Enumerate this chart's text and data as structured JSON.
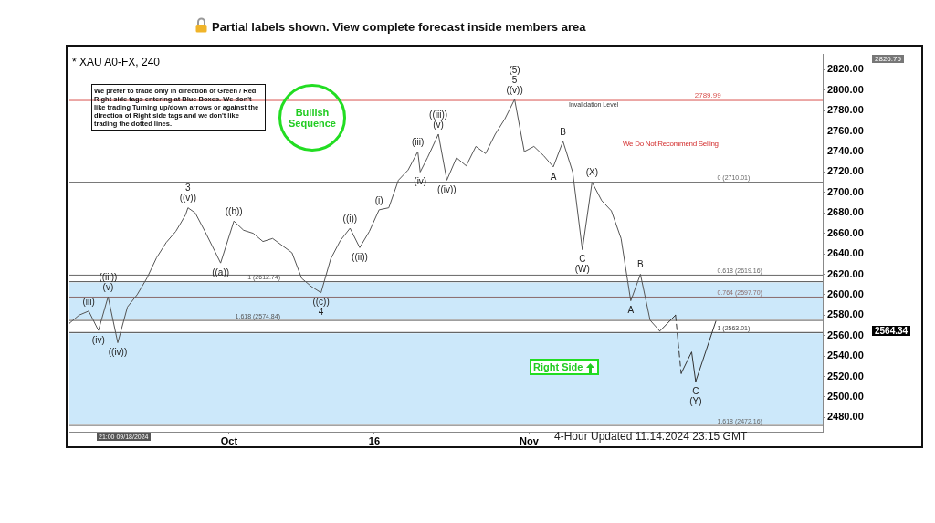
{
  "chart_data": {
    "type": "line",
    "title": "* XAU A0-FX, 240",
    "xlim": [
      "2024-09-14T12:00",
      "2024-12-01T08:00"
    ],
    "xticks": [
      {
        "value": "2024-10-01",
        "label": "Oct"
      },
      {
        "value": "2024-10-16",
        "label": "16"
      },
      {
        "value": "2024-11-01",
        "label": "Nov"
      }
    ],
    "ylim": [
      2466,
      2835
    ],
    "yticks": [
      {
        "value": 2480,
        "label": "2480.00"
      },
      {
        "value": 2500,
        "label": "2500.00"
      },
      {
        "value": 2520,
        "label": "2520.00"
      },
      {
        "value": 2540,
        "label": "2540.00"
      },
      {
        "value": 2560,
        "label": "2560.00"
      },
      {
        "value": 2580,
        "label": "2580.00"
      },
      {
        "value": 2600,
        "label": "2600.00"
      },
      {
        "value": 2620,
        "label": "2620.00"
      },
      {
        "value": 2640,
        "label": "2640.00"
      },
      {
        "value": 2660,
        "label": "2660.00"
      },
      {
        "value": 2680,
        "label": "2680.00"
      },
      {
        "value": 2700,
        "label": "2700.00"
      },
      {
        "value": 2720,
        "label": "2720.00"
      },
      {
        "value": 2740,
        "label": "2740.00"
      },
      {
        "value": 2760,
        "label": "2760.00"
      },
      {
        "value": 2780,
        "label": "2780.00"
      },
      {
        "value": 2800,
        "label": "2800.00"
      },
      {
        "value": 2820,
        "label": "2820.00"
      }
    ],
    "grid": false,
    "legend": false,
    "marker": "none",
    "series": [
      {
        "color": "#555555",
        "line_style": "solid",
        "x": [
          "2024-09-14T12:00",
          "2024-09-15T12:00",
          "2024-09-16T12:00",
          "2024-09-17T12:00",
          "2024-09-18T12:00",
          "2024-09-19T12:00",
          "2024-09-20T12:00",
          "2024-09-21T12:00",
          "2024-09-22T12:00",
          "2024-09-23T12:00",
          "2024-09-24T12:00",
          "2024-09-25T12:00",
          "2024-09-26T12:00",
          "2024-09-26T18:00",
          "2024-09-27T12:00",
          "2024-09-28T12:00",
          "2024-09-29T12:00",
          "2024-09-30T03:00",
          "2024-10-01T12:00",
          "2024-10-02T12:00",
          "2024-10-03T12:00",
          "2024-10-04T12:00",
          "2024-10-05T12:00",
          "2024-10-06T12:00",
          "2024-10-07T12:00",
          "2024-10-08T12:00",
          "2024-10-09T12:00",
          "2024-10-10T12:00",
          "2024-10-11T12:00",
          "2024-10-12T12:00",
          "2024-10-13T12:00",
          "2024-10-14T12:00",
          "2024-10-15T12:00",
          "2024-10-16T12:00",
          "2024-10-17T12:00",
          "2024-10-18T12:00",
          "2024-10-19T12:00",
          "2024-10-20T12:00",
          "2024-10-20T18:00",
          "2024-10-21T12:00",
          "2024-10-22T15:00",
          "2024-10-23T12:00",
          "2024-10-24T12:00",
          "2024-10-25T12:00",
          "2024-10-26T12:00",
          "2024-10-27T12:00",
          "2024-10-28T12:00",
          "2024-10-29T12:00",
          "2024-10-30T12:00",
          "2024-10-31T12:00",
          "2024-11-01T12:00",
          "2024-11-02T12:00",
          "2024-11-03T12:00",
          "2024-11-04T12:00",
          "2024-11-05T12:00",
          "2024-11-06T12:00",
          "2024-11-07T12:00",
          "2024-11-08T12:00",
          "2024-11-09T12:00",
          "2024-11-10T12:00",
          "2024-11-11T12:00",
          "2024-11-12T12:00",
          "2024-11-13T12:00",
          "2024-11-14T12:00"
        ],
        "values": [
          2572,
          2580,
          2584,
          2565,
          2598,
          2553,
          2588,
          2600,
          2616,
          2636,
          2651,
          2662,
          2678,
          2685,
          2680,
          2662,
          2643,
          2631,
          2672,
          2663,
          2660,
          2652,
          2655,
          2648,
          2641,
          2616,
          2608,
          2602,
          2635,
          2653,
          2665,
          2646,
          2662,
          2683,
          2685,
          2712,
          2722,
          2740,
          2720,
          2734,
          2757,
          2712,
          2734,
          2726,
          2745,
          2738,
          2757,
          2772,
          2791,
          2740,
          2745,
          2736,
          2725,
          2750,
          2720,
          2644,
          2710,
          2692,
          2682,
          2655,
          2594,
          2620,
          2575,
          2564.34
        ]
      },
      {
        "color": "#333333",
        "line_style": "solid",
        "x": [
          "2024-11-14T12:00",
          "2024-11-16T03:00"
        ],
        "values": [
          2564.34,
          2580
        ]
      },
      {
        "color": "#333333",
        "line_style": "dashed",
        "x": [
          "2024-11-16T03:00",
          "2024-11-16T17:00"
        ],
        "values": [
          2580,
          2523
        ]
      },
      {
        "color": "#333333",
        "line_style": "solid",
        "x": [
          "2024-11-16T17:00",
          "2024-11-17T19:00",
          "2024-11-18T05:00",
          "2024-11-20T07:00"
        ],
        "values": [
          2523,
          2544,
          2515,
          2574
        ]
      }
    ],
    "ref_lines": [
      {
        "axis": "y",
        "value": 2789.99,
        "label": "2789.99",
        "color": "#d9534f"
      },
      {
        "axis": "y",
        "value": 2710.01,
        "label": "0 (2710.01)",
        "color": "#666666"
      },
      {
        "axis": "y",
        "value": 2619.16,
        "label": "0.618 (2619.16)",
        "color": "#666666"
      },
      {
        "axis": "y",
        "value": 2597.7,
        "label": "0.764 (2597.70)",
        "color": "#8a6a6a"
      },
      {
        "axis": "y",
        "value": 2563.01,
        "label": "1 (2563.01)",
        "color": "#444444"
      },
      {
        "axis": "y",
        "value": 2472.16,
        "label": "1.618 (2472.16)",
        "color": "#666666"
      },
      {
        "axis": "y",
        "value": 2612.74,
        "label": "1 (2612.74)",
        "color": "#555555"
      },
      {
        "axis": "y",
        "value": 2574.84,
        "label": "1.618 (2574.84)",
        "color": "#555555"
      }
    ],
    "bands": [
      {
        "axis": "y",
        "from": 2574.84,
        "to": 2612.74,
        "color": "#aad8f7"
      },
      {
        "axis": "y",
        "from": 2472.16,
        "to": 2563.01,
        "color": "#aad8f7"
      }
    ],
    "annotations": [
      "Partial labels shown. View complete forecast inside members area",
      "We prefer to trade only in direction of Green / Red Right side tags entering at Blue Boxes. We don't like trading Turning up/down arrows or against the direction of Right side tags and we don't like trading the dotted lines.",
      "Bullish Sequence",
      "Invalidation Level",
      "We Do Not Recommend Selling",
      "Right Side",
      "4-Hour Updated 11.14.2024 23:15 GMT",
      "21:00 09/18/2024",
      "2826.75",
      "2564.34",
      {
        "text": "(iii)",
        "x": "2024-09-16T12:00",
        "y": 2584
      },
      {
        "text": "(iv)",
        "x": "2024-09-17T12:00",
        "y": 2565
      },
      {
        "text": "(v)",
        "x": "2024-09-18T12:00",
        "y": 2598
      },
      {
        "text": "((iii))",
        "x": "2024-09-18T12:00",
        "y": 2598
      },
      {
        "text": "((iv))",
        "x": "2024-09-19T12:00",
        "y": 2553
      },
      {
        "text": "((v))",
        "x": "2024-09-26T18:00",
        "y": 2685
      },
      {
        "text": "3",
        "x": "2024-09-26T18:00",
        "y": 2685
      },
      {
        "text": "((a))",
        "x": "2024-09-30T03:00",
        "y": 2631
      },
      {
        "text": "((b))",
        "x": "2024-10-01T12:00",
        "y": 2672
      },
      {
        "text": "((c))",
        "x": "2024-10-10T12:00",
        "y": 2602
      },
      {
        "text": "4",
        "x": "2024-10-10T12:00",
        "y": 2602
      },
      {
        "text": "((i))",
        "x": "2024-10-13T12:00",
        "y": 2665
      },
      {
        "text": "((ii))",
        "x": "2024-10-14T12:00",
        "y": 2646
      },
      {
        "text": "(i)",
        "x": "2024-10-16T12:00",
        "y": 2683
      },
      {
        "text": "(iii)",
        "x": "2024-10-20T12:00",
        "y": 2740
      },
      {
        "text": "(iv)",
        "x": "2024-10-20T18:00",
        "y": 2720
      },
      {
        "text": "(v)",
        "x": "2024-10-22T15:00",
        "y": 2757
      },
      {
        "text": "((iii))",
        "x": "2024-10-22T15:00",
        "y": 2757
      },
      {
        "text": "((iv))",
        "x": "2024-10-23T12:00",
        "y": 2712
      },
      {
        "text": "((v))",
        "x": "2024-10-30T12:00",
        "y": 2791
      },
      {
        "text": "5",
        "x": "2024-10-30T12:00",
        "y": 2791
      },
      {
        "text": "(5)",
        "x": "2024-10-30T12:00",
        "y": 2791
      },
      {
        "text": "A",
        "x": "2024-11-03T12:00",
        "y": 2725
      },
      {
        "text": "B",
        "x": "2024-11-04T12:00",
        "y": 2750
      },
      {
        "text": "C",
        "x": "2024-11-06T12:00",
        "y": 2644
      },
      {
        "text": "(W)",
        "x": "2024-11-06T12:00",
        "y": 2644
      },
      {
        "text": "(X)",
        "x": "2024-11-07T12:00",
        "y": 2710
      },
      {
        "text": "A",
        "x": "2024-11-11T12:00",
        "y": 2594
      },
      {
        "text": "B",
        "x": "2024-11-12T12:00",
        "y": 2620
      },
      {
        "text": "C",
        "x": "2024-11-18T05:00",
        "y": 2515
      },
      {
        "text": "(Y)",
        "x": "2024-11-18T05:00",
        "y": 2515
      }
    ]
  }
}
